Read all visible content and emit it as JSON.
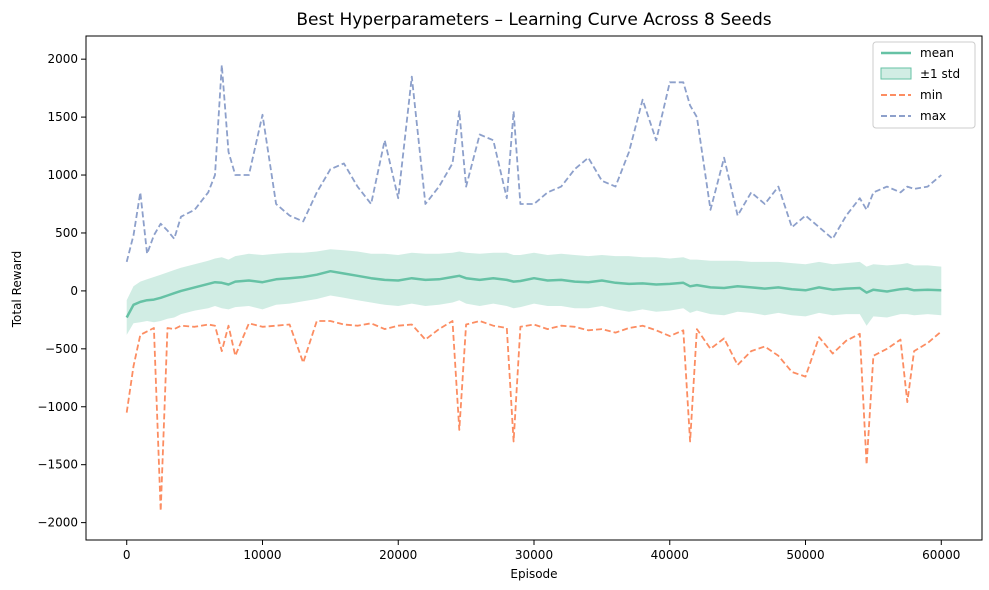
{
  "chart_data": {
    "type": "line",
    "title": "Best Hyperparameters – Learning Curve Across 8 Seeds",
    "xlabel": "Episode",
    "ylabel": "Total Reward",
    "xlim": [
      -3000,
      63000
    ],
    "ylim": [
      -2150,
      2200
    ],
    "xticks": [
      0,
      10000,
      20000,
      30000,
      40000,
      50000,
      60000
    ],
    "yticks": [
      -2000,
      -1500,
      -1000,
      -500,
      0,
      500,
      1000,
      1500,
      2000
    ],
    "grid": false,
    "legend_position": "top-right",
    "colors": {
      "mean": "#66c2a5",
      "std": "#66c2a5",
      "min": "#fc8d62",
      "max": "#8da0cb"
    },
    "x": [
      0,
      500,
      1000,
      1500,
      2000,
      2500,
      3000,
      3500,
      4000,
      5000,
      6000,
      6500,
      7000,
      7500,
      8000,
      9000,
      10000,
      11000,
      12000,
      13000,
      14000,
      15000,
      16000,
      17000,
      18000,
      19000,
      20000,
      21000,
      22000,
      23000,
      24000,
      24500,
      25000,
      26000,
      27000,
      28000,
      28500,
      29000,
      30000,
      31000,
      32000,
      33000,
      34000,
      35000,
      36000,
      37000,
      38000,
      39000,
      40000,
      41000,
      41500,
      42000,
      43000,
      44000,
      45000,
      46000,
      47000,
      48000,
      49000,
      50000,
      51000,
      52000,
      53000,
      54000,
      54500,
      55000,
      56000,
      57000,
      57500,
      58000,
      59000,
      60000
    ],
    "series": [
      {
        "name": "mean",
        "style": "solid",
        "values": [
          -230,
          -120,
          -95,
          -80,
          -75,
          -60,
          -40,
          -20,
          0,
          30,
          60,
          75,
          70,
          55,
          80,
          90,
          75,
          100,
          110,
          120,
          140,
          170,
          150,
          130,
          110,
          95,
          90,
          110,
          95,
          100,
          120,
          130,
          110,
          95,
          110,
          95,
          80,
          85,
          110,
          90,
          95,
          80,
          75,
          90,
          70,
          60,
          65,
          55,
          60,
          70,
          40,
          50,
          30,
          25,
          40,
          30,
          20,
          30,
          15,
          5,
          30,
          10,
          20,
          25,
          -15,
          10,
          -5,
          15,
          20,
          5,
          10,
          5
        ]
      },
      {
        "name": "±1 std",
        "style": "band",
        "upper": [
          -80,
          40,
          80,
          100,
          120,
          140,
          160,
          180,
          200,
          230,
          260,
          280,
          290,
          270,
          300,
          320,
          310,
          320,
          330,
          330,
          340,
          360,
          350,
          340,
          320,
          320,
          310,
          330,
          320,
          320,
          330,
          340,
          330,
          320,
          330,
          330,
          310,
          310,
          330,
          310,
          320,
          310,
          300,
          310,
          300,
          300,
          290,
          290,
          280,
          290,
          270,
          270,
          260,
          260,
          260,
          250,
          250,
          250,
          240,
          230,
          250,
          230,
          240,
          250,
          210,
          230,
          220,
          230,
          240,
          220,
          220,
          210
        ],
        "lower": [
          -380,
          -280,
          -270,
          -260,
          -270,
          -260,
          -240,
          -230,
          -200,
          -170,
          -150,
          -130,
          -150,
          -160,
          -140,
          -130,
          -160,
          -120,
          -110,
          -90,
          -70,
          -40,
          -60,
          -80,
          -100,
          -120,
          -130,
          -110,
          -130,
          -120,
          -100,
          -80,
          -110,
          -130,
          -110,
          -130,
          -150,
          -140,
          -110,
          -130,
          -130,
          -150,
          -150,
          -130,
          -160,
          -180,
          -160,
          -180,
          -170,
          -150,
          -190,
          -170,
          -200,
          -210,
          -180,
          -190,
          -210,
          -190,
          -210,
          -220,
          -190,
          -210,
          -200,
          -200,
          -300,
          -220,
          -230,
          -200,
          -200,
          -210,
          -200,
          -210
        ]
      },
      {
        "name": "min",
        "style": "dashed",
        "values": [
          -1050,
          -650,
          -380,
          -350,
          -320,
          -1900,
          -320,
          -330,
          -300,
          -310,
          -290,
          -300,
          -520,
          -300,
          -560,
          -280,
          -310,
          -300,
          -290,
          -620,
          -260,
          -260,
          -290,
          -300,
          -280,
          -330,
          -300,
          -290,
          -420,
          -330,
          -260,
          -1200,
          -290,
          -260,
          -300,
          -320,
          -1300,
          -310,
          -290,
          -330,
          -300,
          -310,
          -340,
          -330,
          -360,
          -320,
          -300,
          -340,
          -390,
          -340,
          -1300,
          -330,
          -500,
          -410,
          -640,
          -520,
          -480,
          -560,
          -700,
          -740,
          -400,
          -540,
          -430,
          -370,
          -1500,
          -560,
          -500,
          -420,
          -960,
          -520,
          -450,
          -350
        ]
      },
      {
        "name": "max",
        "style": "dashed",
        "values": [
          250,
          480,
          850,
          320,
          480,
          580,
          520,
          450,
          640,
          700,
          850,
          1000,
          1950,
          1200,
          1000,
          1000,
          1520,
          750,
          650,
          600,
          850,
          1050,
          1100,
          900,
          750,
          1300,
          800,
          1850,
          750,
          900,
          1100,
          1550,
          900,
          1350,
          1300,
          800,
          1550,
          750,
          750,
          850,
          900,
          1050,
          1150,
          950,
          900,
          1200,
          1650,
          1300,
          1800,
          1800,
          1600,
          1500,
          700,
          1150,
          650,
          850,
          750,
          900,
          550,
          650,
          550,
          450,
          650,
          800,
          700,
          850,
          900,
          850,
          900,
          880,
          900,
          1000
        ]
      }
    ]
  }
}
